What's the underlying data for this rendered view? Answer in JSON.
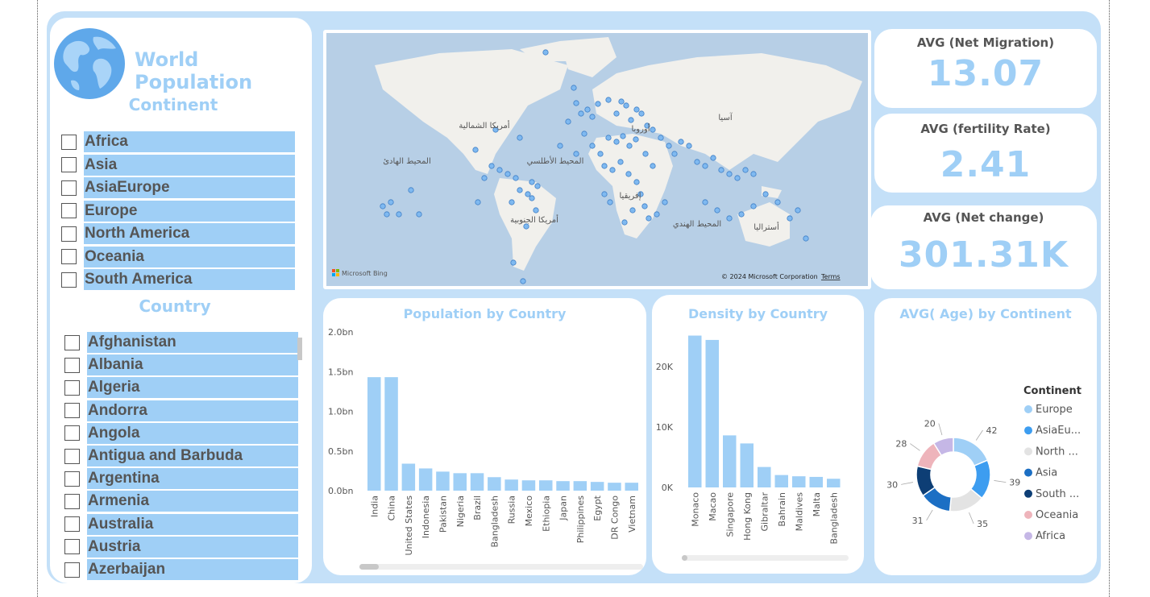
{
  "app": {
    "title": "World Population"
  },
  "continent_slicer": {
    "header": "Continent",
    "items": [
      "Africa",
      "Asia",
      "AsiaEurope",
      "Europe",
      "North America",
      "Oceania",
      "South America"
    ]
  },
  "country_slicer": {
    "header": "Country",
    "items": [
      "Afghanistan",
      "Albania",
      "Algeria",
      "Andorra",
      "Angola",
      "Antigua and Barbuda",
      "Argentina",
      "Armenia",
      "Australia",
      "Austria",
      "Azerbaijan"
    ]
  },
  "map": {
    "labels": [
      "أمريكا الشمالية",
      "المحيط الهادئ",
      "المحيط الأطلسي",
      "آسيا",
      "أمريكا الجنوبية",
      "المحيط الهندي",
      "أستراليا",
      "إفريقيا",
      "أوروبا"
    ],
    "bing_label": "Microsoft Bing",
    "copyright": "© 2024 Microsoft Corporation",
    "terms_link": "Terms"
  },
  "kpis": {
    "net_migration": {
      "label": "AVG (Net Migration)",
      "value": "13.07"
    },
    "fertility": {
      "label": "AVG (fertility Rate)",
      "value": "2.41"
    },
    "net_change": {
      "label": "AVG (Net change)",
      "value": "301.31K"
    }
  },
  "colors": {
    "accent": "#9fcff6",
    "background": "#c4e0f8",
    "text_grey": "#555555"
  },
  "chart_data": [
    {
      "type": "bar",
      "title": "Population by Country",
      "categories": [
        "India",
        "China",
        "United States",
        "Indonesia",
        "Pakistan",
        "Nigeria",
        "Brazil",
        "Bangladesh",
        "Russia",
        "Mexico",
        "Ethiopia",
        "Japan",
        "Philippines",
        "Egypt",
        "DR Congo",
        "Vietnam"
      ],
      "values": [
        1.43,
        1.43,
        0.34,
        0.28,
        0.24,
        0.22,
        0.22,
        0.17,
        0.14,
        0.13,
        0.13,
        0.12,
        0.12,
        0.11,
        0.1,
        0.1
      ],
      "yticks": [
        "0.0bn",
        "0.5bn",
        "1.0bn",
        "1.5bn",
        "2.0bn"
      ],
      "ylim": [
        0,
        2.0
      ],
      "color": "#9fcff6"
    },
    {
      "type": "bar",
      "title": "Density by Country",
      "categories": [
        "Monaco",
        "Macao",
        "Singapore",
        "Hong Kong",
        "Gibraltar",
        "Bahrain",
        "Maldives",
        "Malta",
        "Bangladesh"
      ],
      "values": [
        24500,
        23800,
        8400,
        7100,
        3300,
        2000,
        1800,
        1700,
        1400
      ],
      "yticks": [
        "0K",
        "10K",
        "20K"
      ],
      "ylim": [
        0,
        26000
      ],
      "color": "#9fcff6"
    },
    {
      "type": "pie",
      "title": "AVG( Age) by Continent",
      "legend_title": "Continent",
      "legend": [
        "Europe",
        "AsiaEu...",
        "North ...",
        "Asia",
        "South ...",
        "Oceania",
        "Africa"
      ],
      "values": [
        42,
        39,
        35,
        31,
        30,
        28,
        20
      ],
      "colors": [
        "#9fcff6",
        "#3d9df0",
        "#e3e3e3",
        "#1c6fc4",
        "#0d3e75",
        "#eeb4bb",
        "#c5b7e6"
      ]
    }
  ]
}
